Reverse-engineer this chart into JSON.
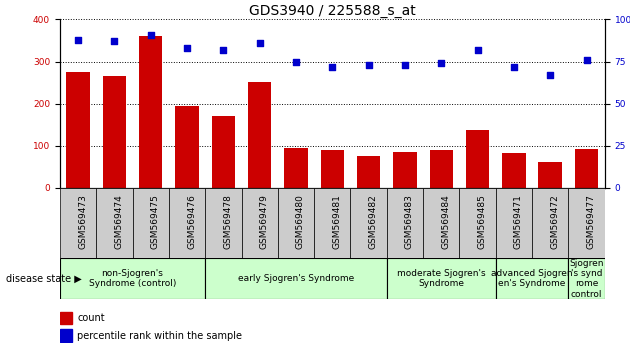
{
  "title": "GDS3940 / 225588_s_at",
  "samples": [
    "GSM569473",
    "GSM569474",
    "GSM569475",
    "GSM569476",
    "GSM569478",
    "GSM569479",
    "GSM569480",
    "GSM569481",
    "GSM569482",
    "GSM569483",
    "GSM569484",
    "GSM569485",
    "GSM569471",
    "GSM569472",
    "GSM569477"
  ],
  "counts": [
    275,
    265,
    360,
    195,
    170,
    252,
    95,
    90,
    75,
    85,
    90,
    138,
    83,
    62,
    92
  ],
  "percentiles": [
    88,
    87,
    91,
    83,
    82,
    86,
    75,
    72,
    73,
    73,
    74,
    82,
    72,
    67,
    76
  ],
  "bar_color": "#cc0000",
  "dot_color": "#0000cc",
  "ylim_left": [
    0,
    400
  ],
  "ylim_right": [
    0,
    100
  ],
  "yticks_left": [
    0,
    100,
    200,
    300,
    400
  ],
  "yticks_right": [
    0,
    25,
    50,
    75,
    100
  ],
  "yticklabels_right": [
    "0",
    "25",
    "50",
    "75",
    "100%"
  ],
  "group_indices": [
    [
      0,
      1,
      2,
      3
    ],
    [
      4,
      5,
      6,
      7,
      8
    ],
    [
      9,
      10,
      11
    ],
    [
      12,
      13
    ],
    [
      14
    ]
  ],
  "group_labels": [
    "non-Sjogren's\nSyndrome (control)",
    "early Sjogren's Syndrome",
    "moderate Sjogren's\nSyndrome",
    "advanced Sjogren\nen's Syndrome",
    "Sjogren\n's synd\nrome\ncontrol"
  ],
  "group_colors": [
    "#ccffcc",
    "#ccffcc",
    "#ccffcc",
    "#ccffcc",
    "#ccffcc"
  ],
  "tick_bg_color": "#cccccc",
  "bg_color": "#ffffff",
  "disease_state_label": "disease state",
  "legend_count_label": "count",
  "legend_percentile_label": "percentile rank within the sample",
  "title_fontsize": 10,
  "tick_fontsize": 6.5,
  "group_fontsize": 6.5,
  "legend_fontsize": 7
}
